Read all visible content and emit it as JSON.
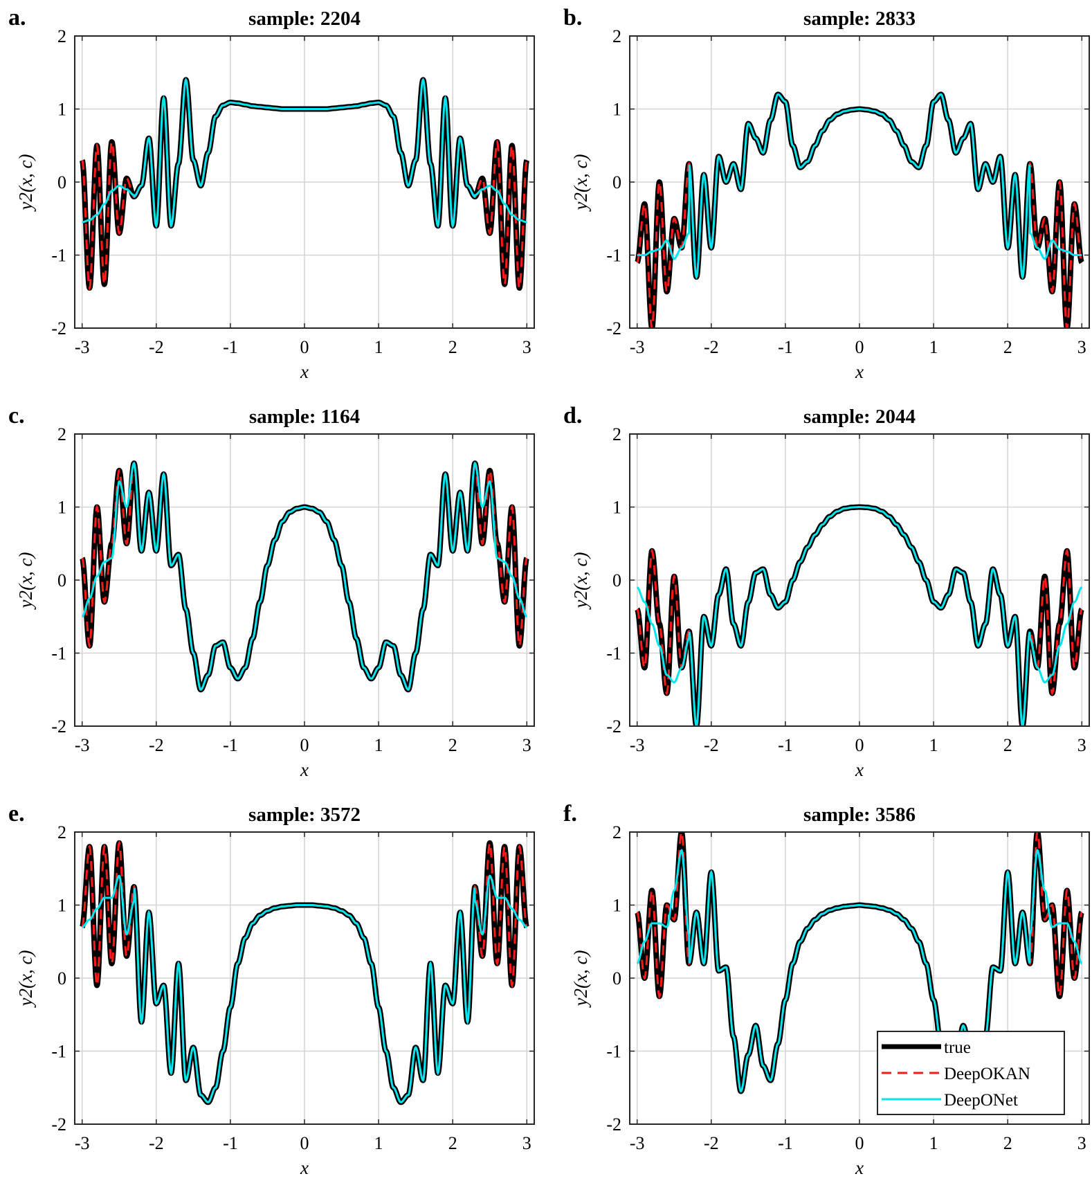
{
  "chart_data": [
    {
      "type": "line",
      "panel": "a.",
      "title": "sample:  2204",
      "xlabel": "x",
      "ylabel": "y2(x, c)",
      "xlim": [
        -3,
        3
      ],
      "ylim": [
        -2,
        2
      ],
      "xticks": [
        "-3",
        "-2",
        "-1",
        "0",
        "1",
        "2",
        "3"
      ],
      "yticks": [
        "2",
        "1",
        "0",
        "-1",
        "-2"
      ],
      "grid": true,
      "profile": {
        "x": [
          -3.0,
          -2.9,
          -2.8,
          -2.7,
          -2.6,
          -2.5,
          -2.4,
          -2.3,
          -2.2,
          -2.1,
          -2.0,
          -1.9,
          -1.8,
          -1.7,
          -1.6,
          -1.5,
          -1.4,
          -1.3,
          -1.2,
          -1.1,
          -1.0,
          -0.9,
          -0.8,
          -0.7,
          -0.6,
          -0.5,
          -0.4,
          -0.3,
          -0.2,
          -0.1,
          0.0
        ],
        "y": [
          0.3,
          -1.45,
          0.5,
          -1.4,
          0.55,
          -0.7,
          0.05,
          -0.2,
          -0.05,
          0.6,
          -0.6,
          1.15,
          -0.6,
          0.25,
          1.4,
          0.3,
          -0.05,
          0.4,
          0.9,
          1.05,
          1.09,
          1.08,
          1.06,
          1.04,
          1.03,
          1.02,
          1.01,
          1.0,
          1.0,
          1.0,
          1.0
        ]
      },
      "deeponet_profile": {
        "x": [
          -3.0,
          -2.9,
          -2.8,
          -2.7,
          -2.6,
          -2.5,
          -2.4,
          -2.3
        ],
        "y": [
          -0.55,
          -0.52,
          -0.45,
          -0.3,
          -0.12,
          -0.05,
          -0.1,
          -0.18
        ]
      },
      "series": [
        {
          "name": "true"
        },
        {
          "name": "DeepOKAN"
        },
        {
          "name": "DeepONet"
        }
      ]
    },
    {
      "type": "line",
      "panel": "b.",
      "title": "sample:  2833",
      "xlabel": "x",
      "ylabel": "y2(x, c)",
      "xlim": [
        -3,
        3
      ],
      "ylim": [
        -2,
        2
      ],
      "xticks": [
        "-3",
        "-2",
        "-1",
        "0",
        "1",
        "2",
        "3"
      ],
      "yticks": [
        "2",
        "1",
        "0",
        "-1",
        "-2"
      ],
      "grid": true,
      "profile": {
        "x": [
          -3.0,
          -2.9,
          -2.8,
          -2.7,
          -2.6,
          -2.5,
          -2.4,
          -2.3,
          -2.2,
          -2.1,
          -2.0,
          -1.9,
          -1.8,
          -1.7,
          -1.6,
          -1.5,
          -1.4,
          -1.3,
          -1.2,
          -1.1,
          -1.0,
          -0.9,
          -0.8,
          -0.7,
          -0.6,
          -0.5,
          -0.4,
          -0.3,
          -0.2,
          -0.1,
          0.0
        ],
        "y": [
          -1.1,
          -0.3,
          -2.0,
          0.0,
          -1.5,
          -0.5,
          -0.9,
          0.25,
          -1.3,
          0.1,
          -0.9,
          0.35,
          0.0,
          0.25,
          -0.1,
          0.8,
          0.6,
          0.4,
          0.85,
          1.2,
          1.1,
          0.5,
          0.2,
          0.28,
          0.5,
          0.7,
          0.85,
          0.93,
          0.97,
          0.99,
          1.0
        ]
      },
      "deeponet_profile": {
        "x": [
          -3.0,
          -2.9,
          -2.8,
          -2.7,
          -2.6,
          -2.5,
          -2.4,
          -2.3
        ],
        "y": [
          -1.0,
          -1.0,
          -0.95,
          -0.92,
          -0.8,
          -1.05,
          -0.9,
          -0.7
        ]
      }
    },
    {
      "type": "line",
      "panel": "c.",
      "title": "sample:  1164",
      "xlabel": "x",
      "ylabel": "y2(x, c)",
      "xlim": [
        -3,
        3
      ],
      "ylim": [
        -2,
        2
      ],
      "xticks": [
        "-3",
        "-2",
        "-1",
        "0",
        "1",
        "2",
        "3"
      ],
      "yticks": [
        "2",
        "1",
        "0",
        "-1",
        "-2"
      ],
      "grid": true,
      "profile": {
        "x": [
          -3.0,
          -2.9,
          -2.8,
          -2.7,
          -2.6,
          -2.5,
          -2.4,
          -2.3,
          -2.2,
          -2.1,
          -2.0,
          -1.9,
          -1.8,
          -1.7,
          -1.6,
          -1.5,
          -1.4,
          -1.3,
          -1.2,
          -1.1,
          -1.0,
          -0.9,
          -0.8,
          -0.7,
          -0.6,
          -0.5,
          -0.4,
          -0.3,
          -0.2,
          -0.1,
          0.0
        ],
        "y": [
          0.3,
          -0.9,
          1.0,
          -0.3,
          0.5,
          1.5,
          0.5,
          1.6,
          0.4,
          1.2,
          0.4,
          1.45,
          0.2,
          0.35,
          -0.4,
          -1.0,
          -1.5,
          -1.3,
          -0.9,
          -0.85,
          -1.2,
          -1.35,
          -1.2,
          -0.8,
          -0.3,
          0.2,
          0.55,
          0.8,
          0.93,
          0.98,
          1.0
        ]
      },
      "deeponet_profile": {
        "x": [
          -3.0,
          -2.9,
          -2.8,
          -2.7,
          -2.6,
          -2.5,
          -2.4,
          -2.3
        ],
        "y": [
          -0.5,
          -0.25,
          0.05,
          0.25,
          0.3,
          1.35,
          1.0,
          1.6
        ]
      }
    },
    {
      "type": "line",
      "panel": "d.",
      "title": "sample:  2044",
      "xlabel": "x",
      "ylabel": "y2(x, c)",
      "xlim": [
        -3,
        3
      ],
      "ylim": [
        -2,
        2
      ],
      "xticks": [
        "-3",
        "-2",
        "-1",
        "0",
        "1",
        "2",
        "3"
      ],
      "yticks": [
        "2",
        "1",
        "0",
        "-1",
        "-2"
      ],
      "grid": true,
      "profile": {
        "x": [
          -3.0,
          -2.9,
          -2.8,
          -2.7,
          -2.6,
          -2.5,
          -2.4,
          -2.3,
          -2.2,
          -2.1,
          -2.0,
          -1.9,
          -1.8,
          -1.7,
          -1.6,
          -1.5,
          -1.4,
          -1.3,
          -1.2,
          -1.1,
          -1.0,
          -0.9,
          -0.8,
          -0.7,
          -0.6,
          -0.5,
          -0.4,
          -0.3,
          -0.2,
          -0.1,
          0.0
        ],
        "y": [
          -0.4,
          -1.2,
          0.4,
          -0.6,
          -1.55,
          0.05,
          -1.2,
          -0.7,
          -2.0,
          -0.5,
          -0.9,
          -0.2,
          0.15,
          -0.6,
          -0.9,
          -0.3,
          0.1,
          0.15,
          -0.2,
          -0.38,
          -0.3,
          0.0,
          0.25,
          0.45,
          0.62,
          0.76,
          0.87,
          0.94,
          0.98,
          0.995,
          1.0
        ]
      },
      "deeponet_profile": {
        "x": [
          -3.0,
          -2.9,
          -2.8,
          -2.7,
          -2.6,
          -2.5,
          -2.4,
          -2.3
        ],
        "y": [
          -0.1,
          -0.3,
          -0.6,
          -0.9,
          -1.3,
          -1.4,
          -1.2,
          -0.8
        ]
      }
    },
    {
      "type": "line",
      "panel": "e.",
      "title": "sample:  3572",
      "xlabel": "x",
      "ylabel": "y2(x, c)",
      "xlim": [
        -3,
        3
      ],
      "ylim": [
        -2,
        2
      ],
      "xticks": [
        "-3",
        "-2",
        "-1",
        "0",
        "1",
        "2",
        "3"
      ],
      "yticks": [
        "2",
        "1",
        "0",
        "-1",
        "-2"
      ],
      "grid": true,
      "profile": {
        "x": [
          -3.0,
          -2.9,
          -2.8,
          -2.7,
          -2.6,
          -2.5,
          -2.4,
          -2.3,
          -2.2,
          -2.1,
          -2.0,
          -1.9,
          -1.8,
          -1.7,
          -1.6,
          -1.5,
          -1.4,
          -1.3,
          -1.2,
          -1.1,
          -1.0,
          -0.9,
          -0.8,
          -0.7,
          -0.6,
          -0.5,
          -0.4,
          -0.3,
          -0.2,
          -0.1,
          0.0
        ],
        "y": [
          0.7,
          1.8,
          -0.1,
          1.8,
          0.2,
          1.85,
          0.3,
          1.25,
          -0.6,
          0.9,
          -0.35,
          -0.1,
          -1.3,
          0.2,
          -1.4,
          -0.95,
          -1.6,
          -1.7,
          -1.5,
          -1.0,
          -0.4,
          0.2,
          0.55,
          0.75,
          0.86,
          0.92,
          0.96,
          0.98,
          0.99,
          1.0,
          1.0
        ]
      },
      "deeponet_profile": {
        "x": [
          -3.0,
          -2.9,
          -2.8,
          -2.7,
          -2.6,
          -2.5,
          -2.4,
          -2.3
        ],
        "y": [
          0.7,
          0.8,
          0.95,
          1.1,
          1.1,
          1.4,
          0.6,
          1.05
        ]
      }
    },
    {
      "type": "line",
      "panel": "f.",
      "title": "sample:  3586",
      "xlabel": "x",
      "ylabel": "y2(x, c)",
      "xlim": [
        -3,
        3
      ],
      "ylim": [
        -2,
        2
      ],
      "xticks": [
        "-3",
        "-2",
        "-1",
        "0",
        "1",
        "2",
        "3"
      ],
      "yticks": [
        "2",
        "1",
        "0",
        "-1",
        "-2"
      ],
      "grid": true,
      "legend_placement": "bottom-right",
      "profile": {
        "x": [
          -3.0,
          -2.9,
          -2.8,
          -2.7,
          -2.6,
          -2.5,
          -2.4,
          -2.3,
          -2.2,
          -2.1,
          -2.0,
          -1.9,
          -1.8,
          -1.7,
          -1.6,
          -1.5,
          -1.4,
          -1.3,
          -1.2,
          -1.1,
          -1.0,
          -0.9,
          -0.8,
          -0.7,
          -0.6,
          -0.5,
          -0.4,
          -0.3,
          -0.2,
          -0.1,
          0.0
        ],
        "y": [
          0.9,
          0.0,
          1.2,
          -0.25,
          1.0,
          0.8,
          2.0,
          0.2,
          0.9,
          0.2,
          1.45,
          0.1,
          0.15,
          -0.8,
          -1.55,
          -1.05,
          -0.65,
          -1.2,
          -1.4,
          -0.9,
          -0.3,
          0.2,
          0.5,
          0.68,
          0.8,
          0.88,
          0.93,
          0.96,
          0.98,
          0.99,
          1.0
        ]
      },
      "deeponet_profile": {
        "x": [
          -3.0,
          -2.9,
          -2.8,
          -2.7,
          -2.6,
          -2.5,
          -2.4,
          -2.3
        ],
        "y": [
          0.2,
          0.5,
          0.75,
          0.75,
          0.7,
          1.2,
          1.75,
          0.6
        ]
      }
    }
  ],
  "legend": {
    "items": [
      "true",
      "DeepOKAN",
      "DeepONet"
    ]
  },
  "colors": {
    "true": "#000000",
    "DeepOKAN": "#ff1a1a",
    "DeepONet": "#00e5ee"
  }
}
